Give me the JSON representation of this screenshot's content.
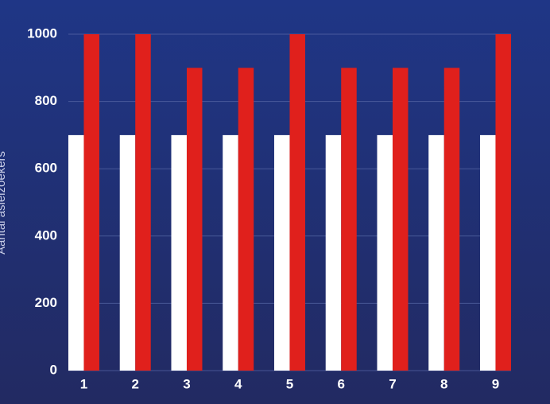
{
  "chart_data": {
    "type": "bar",
    "y_label": "Aantal asielzoekers",
    "categories": [
      "1",
      "2",
      "3",
      "4",
      "5",
      "6",
      "7",
      "8",
      "9"
    ],
    "series": [
      {
        "color": "#ffffff",
        "values": [
          700,
          700,
          700,
          700,
          700,
          700,
          700,
          700,
          700
        ]
      },
      {
        "color": "#e0201c",
        "values": [
          1000,
          1000,
          900,
          900,
          1000,
          900,
          900,
          900,
          1000
        ]
      }
    ],
    "ylim": [
      0,
      1000
    ],
    "yticks": [
      0,
      200,
      400,
      600,
      800,
      1000
    ],
    "grid": true
  }
}
